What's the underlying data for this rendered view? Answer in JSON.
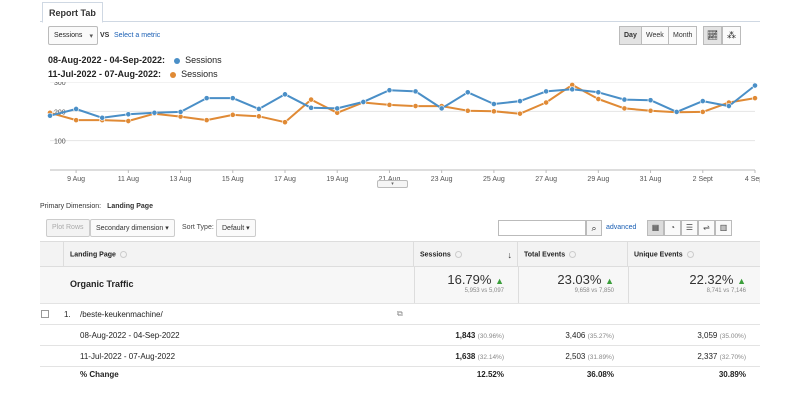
{
  "tab": {
    "label": "Report Tab"
  },
  "controls": {
    "metric": "Sessions",
    "vs": "VS",
    "select_metric": "Select a metric",
    "periods": [
      "Day",
      "Week",
      "Month"
    ]
  },
  "legend": [
    {
      "range": "08-Aug-2022 - 04-Sep-2022:",
      "series": "Sessions",
      "color": "#4a8fc7"
    },
    {
      "range": "11-Jul-2022 - 07-Aug-2022:",
      "series": "Sessions",
      "color": "#e08a35"
    }
  ],
  "chart_data": {
    "type": "line",
    "categories": [
      "8 Aug",
      "9 Aug",
      "10 Aug",
      "11 Aug",
      "12 Aug",
      "13 Aug",
      "14 Aug",
      "15 Aug",
      "16 Aug",
      "17 Aug",
      "18 Aug",
      "19 Aug",
      "20 Aug",
      "21 Aug",
      "22 Aug",
      "23 Aug",
      "24 Aug",
      "25 Aug",
      "26 Aug",
      "27 Aug",
      "28 Aug",
      "29 Aug",
      "30 Aug",
      "31 Aug",
      "1 Sept",
      "2 Sept",
      "3 Sept",
      "4 Sept"
    ],
    "x_tick_labels": [
      "9 Aug",
      "11 Aug",
      "13 Aug",
      "15 Aug",
      "17 Aug",
      "19 Aug",
      "21 Aug",
      "23 Aug",
      "25 Aug",
      "27 Aug",
      "29 Aug",
      "31 Aug",
      "2 Sept",
      "4 Sept"
    ],
    "ylim": [
      0,
      300
    ],
    "yticks": [
      100,
      200,
      300
    ],
    "grid": true,
    "series": [
      {
        "name": "08-Aug-2022 - 04-Sep-2022",
        "color": "#4a8fc7",
        "values": [
          185,
          208,
          178,
          190,
          195,
          198,
          245,
          245,
          208,
          258,
          212,
          210,
          232,
          272,
          268,
          210,
          265,
          225,
          235,
          268,
          275,
          265,
          240,
          238,
          198,
          235,
          218,
          288
        ]
      },
      {
        "name": "11-Jul-2022 - 07-Aug-2022",
        "color": "#e08a35",
        "values": [
          195,
          170,
          170,
          167,
          192,
          182,
          170,
          188,
          183,
          163,
          240,
          195,
          230,
          222,
          218,
          218,
          202,
          200,
          192,
          230,
          290,
          242,
          210,
          202,
          197,
          198,
          230,
          245
        ]
      }
    ]
  },
  "primary_dimension": {
    "label": "Primary Dimension:",
    "value": "Landing Page"
  },
  "toolbar": {
    "plot_rows": "Plot Rows",
    "secondary_dimension": "Secondary dimension",
    "sort_type_label": "Sort Type:",
    "sort_type_value": "Default",
    "advanced": "advanced"
  },
  "table": {
    "headers": {
      "landing_page": "Landing Page",
      "sessions": "Sessions",
      "total_events": "Total Events",
      "unique_events": "Unique Events"
    },
    "summary": {
      "label": "Organic Traffic",
      "sessions": {
        "pct": "16.79%",
        "sub": "5,953 vs 5,097"
      },
      "total_events": {
        "pct": "23.03%",
        "sub": "9,658 vs 7,850"
      },
      "unique_events": {
        "pct": "22.32%",
        "sub": "8,741 vs 7,146"
      }
    },
    "page_row": {
      "index": "1.",
      "page": "/beste-keukenmachine/"
    },
    "range_rows": [
      {
        "label": "08-Aug-2022 - 04-Sep-2022",
        "sessions": "1,843",
        "sessions_pct": "(30.96%)",
        "total_events": "3,406",
        "total_events_pct": "(35.27%)",
        "unique_events": "3,059",
        "unique_events_pct": "(35.00%)"
      },
      {
        "label": "11-Jul-2022 - 07-Aug-2022",
        "sessions": "1,638",
        "sessions_pct": "(32.14%)",
        "total_events": "2,503",
        "total_events_pct": "(31.89%)",
        "unique_events": "2,337",
        "unique_events_pct": "(32.70%)"
      }
    ],
    "change_row": {
      "label": "% Change",
      "sessions": "12.52%",
      "total_events": "36.08%",
      "unique_events": "30.89%"
    }
  }
}
